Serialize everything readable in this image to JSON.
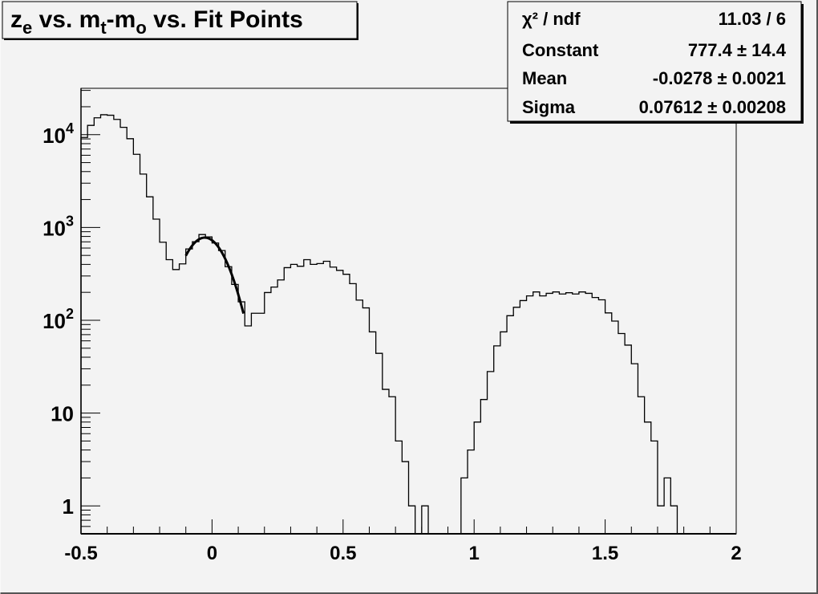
{
  "chart_data": {
    "type": "bar",
    "style": "step-histogram",
    "title_parts": [
      {
        "text": "z",
        "style": "normal"
      },
      {
        "text": "e",
        "style": "sub"
      },
      {
        "text": " vs. m",
        "style": "normal"
      },
      {
        "text": "t",
        "style": "sub"
      },
      {
        "text": "-m",
        "style": "normal"
      },
      {
        "text": "o",
        "style": "sub"
      },
      {
        "text": " vs. Fit Points",
        "style": "normal"
      }
    ],
    "xlabel": "",
    "ylabel": "",
    "xlim": [
      -0.5,
      2
    ],
    "ylim": [
      0.5,
      31600
    ],
    "yscale": "log",
    "grid": false,
    "bins": {
      "xmin": -0.5,
      "xmax": 2,
      "counts": [
        9330,
        12600,
        15200,
        16400,
        16200,
        14600,
        12000,
        9040,
        6140,
        3760,
        2140,
        1230,
        694,
        450,
        352,
        405,
        587,
        702,
        839,
        790,
        680,
        564,
        378,
        243,
        158,
        87,
        119,
        119,
        199,
        228,
        272,
        369,
        400,
        382,
        450,
        400,
        408,
        432,
        374,
        345,
        313,
        248,
        165,
        136,
        75,
        44,
        18,
        15,
        5,
        3,
        1,
        0,
        1,
        0,
        0,
        0,
        0,
        0,
        2,
        4,
        8,
        14,
        28,
        53,
        75,
        112,
        138,
        163,
        183,
        202,
        183,
        195,
        202,
        192,
        198,
        192,
        202,
        195,
        176,
        166,
        120,
        98,
        72,
        54,
        34,
        15,
        8,
        5,
        1,
        2,
        1,
        0,
        0,
        0,
        0,
        0,
        0,
        0,
        0,
        0
      ]
    },
    "fit": {
      "function": "gaus",
      "constant": 777.4,
      "mean": -0.0278,
      "sigma": 0.07612,
      "range": [
        -0.1,
        0.12
      ]
    },
    "x_ticks": [
      {
        "value": -0.5,
        "label": "-0.5"
      },
      {
        "value": 0,
        "label": "0"
      },
      {
        "value": 0.5,
        "label": "0.5"
      },
      {
        "value": 1,
        "label": "1"
      },
      {
        "value": 1.5,
        "label": "1.5"
      },
      {
        "value": 2,
        "label": "2"
      }
    ],
    "y_ticks": [
      {
        "value": 10000,
        "base": "10",
        "exp": "4"
      },
      {
        "value": 1000,
        "base": "10",
        "exp": "3"
      },
      {
        "value": 100,
        "base": "10",
        "exp": "2"
      },
      {
        "value": 10,
        "base": "10",
        "exp": ""
      },
      {
        "value": 1,
        "base": "1",
        "exp": ""
      }
    ],
    "stats": {
      "legend_placement": "top-right",
      "rows": [
        {
          "label": "χ² / ndf",
          "value": "11.03 / 6"
        },
        {
          "label": "Constant",
          "value": "777.4 ± 14.4"
        },
        {
          "label": "Mean",
          "value": "-0.0278 ± 0.0021"
        },
        {
          "label": "Sigma",
          "value": "0.07612 ± 0.00208"
        }
      ]
    },
    "colors": {
      "background": "#f3f3f3",
      "line": "#000000"
    }
  }
}
